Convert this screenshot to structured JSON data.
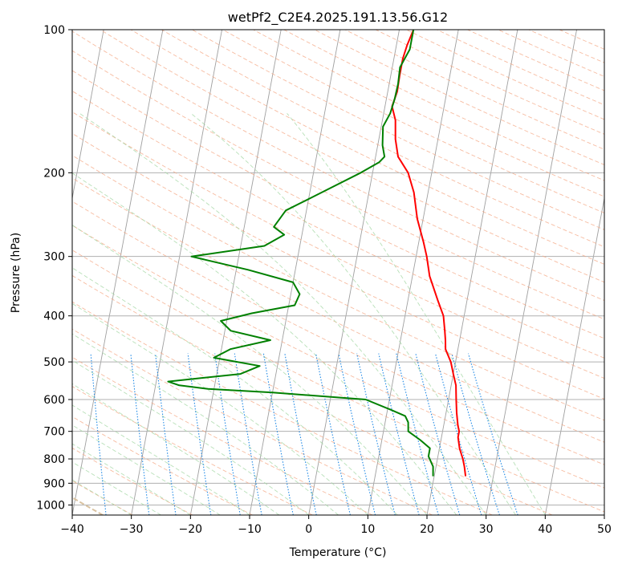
{
  "chart_data": {
    "type": "line",
    "subtype": "skew-t log-p diagram",
    "title": "wetPf2_C2E4.2025.191.13.56.G12",
    "xlabel": "Temperature (°C)",
    "ylabel": "Pressure (hPa)",
    "xlim": [
      -40,
      50
    ],
    "ylim": [
      1050,
      100
    ],
    "y_scale": "log",
    "grid": true,
    "x_ticks": [
      -40,
      -30,
      -20,
      -10,
      0,
      10,
      20,
      30,
      40,
      50
    ],
    "x_tick_labels": [
      "−40",
      "−30",
      "−20",
      "−10",
      "0",
      "10",
      "20",
      "30",
      "40",
      "50"
    ],
    "y_ticks": [
      100,
      200,
      300,
      400,
      500,
      600,
      700,
      800,
      900,
      1000
    ],
    "y_tick_labels": [
      "100",
      "200",
      "300",
      "400",
      "500",
      "600",
      "700",
      "800",
      "900",
      "1000"
    ],
    "colors": {
      "temperature": "#ff0000",
      "dewpoint": "#008000",
      "isotherm": "#a0a0a0",
      "dry_adiabat": "#f4a582",
      "moist_adiabat": "#a6d8a6",
      "mixing_ratio": "#1e88e5",
      "isotherm_label": "#1f6fa8",
      "hot_label": "#d62728",
      "zero_label": "#808080"
    },
    "series": [
      {
        "key": "temperature",
        "p": [
          100,
          108,
          115,
          125,
          135,
          145,
          155,
          170,
          185,
          200,
          220,
          250,
          280,
          300,
          330,
          370,
          400,
          430,
          450,
          470,
          500,
          530,
          560,
          600,
          640,
          680,
          700,
          720,
          760,
          800,
          830,
          870
        ],
        "t": [
          2.4,
          1.8,
          1.5,
          1.5,
          1.6,
          1.2,
          2.2,
          2.8,
          3.8,
          6.0,
          7.6,
          9.0,
          10.8,
          11.8,
          12.9,
          15.0,
          16.5,
          17.2,
          17.6,
          17.9,
          19.2,
          20.0,
          20.8,
          21.3,
          21.8,
          22.4,
          22.8,
          22.8,
          23.4,
          24.3,
          24.8,
          25.3
        ]
      },
      {
        "key": "dewpoint",
        "p": [
          100,
          110,
          120,
          130,
          140,
          150,
          160,
          175,
          185,
          190,
          200,
          220,
          240,
          260,
          270,
          285,
          300,
          320,
          340,
          360,
          380,
          395,
          410,
          430,
          450,
          470,
          490,
          510,
          530,
          550,
          560,
          570,
          580,
          600,
          630,
          650,
          670,
          700,
          730,
          760,
          790,
          830,
          870
        ],
        "t": [
          2.4,
          2.4,
          1.3,
          1.5,
          1.4,
          1.1,
          0.3,
          0.8,
          1.5,
          0.8,
          -2.0,
          -8.0,
          -13.5,
          -15.0,
          -13.0,
          -16.0,
          -28.0,
          -18.0,
          -10.0,
          -8.5,
          -9.0,
          -16.0,
          -21.0,
          -19.0,
          -12.0,
          -18.5,
          -21.0,
          -13.0,
          -16.0,
          -28.0,
          -26.0,
          -21.0,
          -10.0,
          6.0,
          10.5,
          13.2,
          13.9,
          14.2,
          16.5,
          18.4,
          18.4,
          19.5,
          19.8
        ]
      }
    ]
  }
}
